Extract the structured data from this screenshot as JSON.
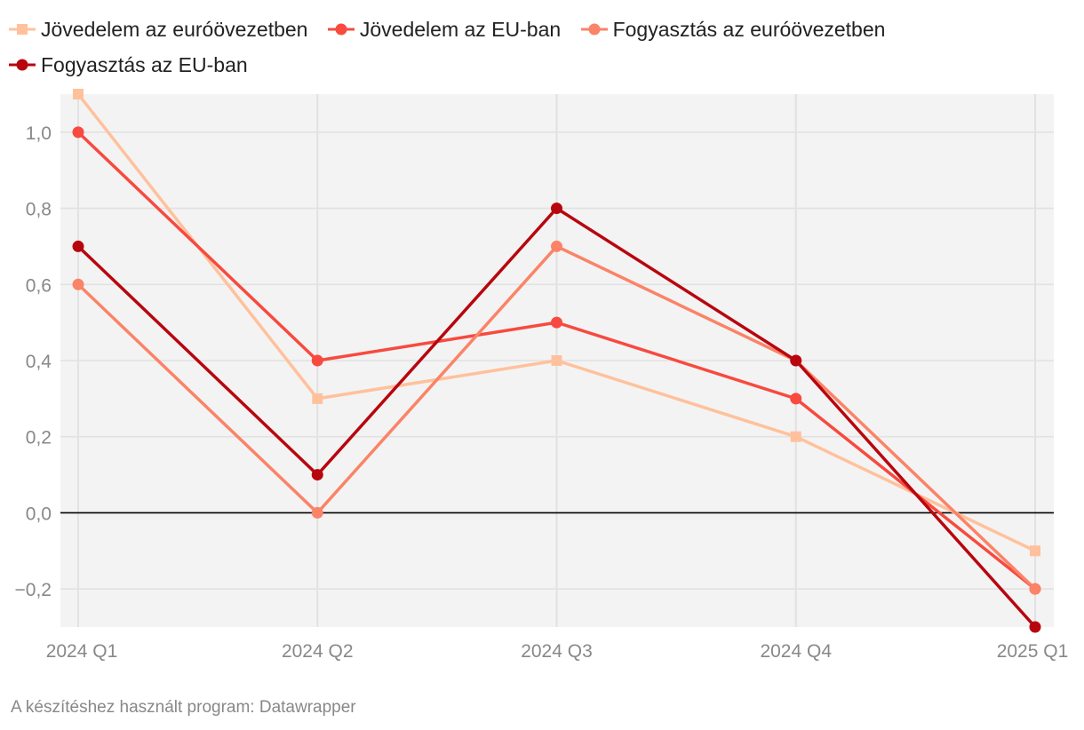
{
  "chart_data": {
    "type": "line",
    "title": "",
    "xlabel": "",
    "ylabel": "",
    "categories": [
      "2024 Q1",
      "2024 Q2",
      "2024 Q3",
      "2024 Q4",
      "2025 Q1"
    ],
    "ylim": [
      -0.3,
      1.1
    ],
    "yticks": [
      -0.2,
      0.0,
      0.2,
      0.4,
      0.6,
      0.8,
      1.0
    ],
    "ytick_labels": [
      "−0,2",
      "0,0",
      "0,2",
      "0,4",
      "0,6",
      "0,8",
      "1,0"
    ],
    "grid": true,
    "legend_position": "top-left",
    "series": [
      {
        "name": "Jövedelem az euróövezetben",
        "values": [
          1.1,
          0.3,
          0.4,
          0.2,
          -0.1
        ],
        "color": "#ffc19c",
        "marker": "square"
      },
      {
        "name": "Jövedelem az EU-ban",
        "values": [
          1.0,
          0.4,
          0.5,
          0.3,
          -0.2
        ],
        "color": "#f84a3f",
        "marker": "circle"
      },
      {
        "name": "Fogyasztás az euróövezetben",
        "values": [
          0.6,
          0.0,
          0.7,
          0.4,
          -0.2
        ],
        "color": "#fb8367",
        "marker": "circle"
      },
      {
        "name": "Fogyasztás az EU-ban",
        "values": [
          0.7,
          0.1,
          0.8,
          0.4,
          -0.3
        ],
        "color": "#b8060e",
        "marker": "circle"
      }
    ]
  },
  "footer": {
    "credit": "A készítéshez használt program: Datawrapper"
  }
}
